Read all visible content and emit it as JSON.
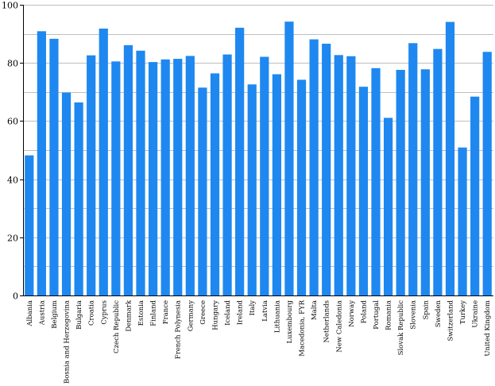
{
  "chart_data": {
    "type": "bar",
    "title": "",
    "xlabel": "",
    "ylabel": "",
    "ylim": [
      0,
      100
    ],
    "yticks": [
      0,
      20,
      40,
      60,
      80,
      100
    ],
    "grid": true,
    "bar_color": "#1e88f0",
    "categories": [
      "Albania",
      "Austria",
      "Belgium",
      "Bosnia and Herzegovina",
      "Bulgaria",
      "Croatia",
      "Cyprus",
      "Czech Republic",
      "Denmark",
      "Estonia",
      "Finland",
      "France",
      "French Polynesia",
      "Germany",
      "Greece",
      "Hungary",
      "Iceland",
      "Ireland",
      "Italy",
      "Latvia",
      "Lithuania",
      "Luxembourg",
      "Macedonia, FYR",
      "Malta",
      "Netherlands",
      "New Caledonia",
      "Norway",
      "Poland",
      "Portugal",
      "Romania",
      "Slovak Republic",
      "Slovenia",
      "Spain",
      "Sweden",
      "Switzerland",
      "Turkey",
      "Ukraine",
      "United Kingdom"
    ],
    "values": [
      48.2,
      90.9,
      88.3,
      69.8,
      66.4,
      82.6,
      91.8,
      80.5,
      86.1,
      84.2,
      80.3,
      81.2,
      81.4,
      82.4,
      71.5,
      76.4,
      82.9,
      92.1,
      72.6,
      82.1,
      76.1,
      94.2,
      74.2,
      88.1,
      86.6,
      82.7,
      82.3,
      71.8,
      78.2,
      61.1,
      77.6,
      86.8,
      77.8,
      84.8,
      94.1,
      50.9,
      68.4,
      83.8
    ]
  }
}
